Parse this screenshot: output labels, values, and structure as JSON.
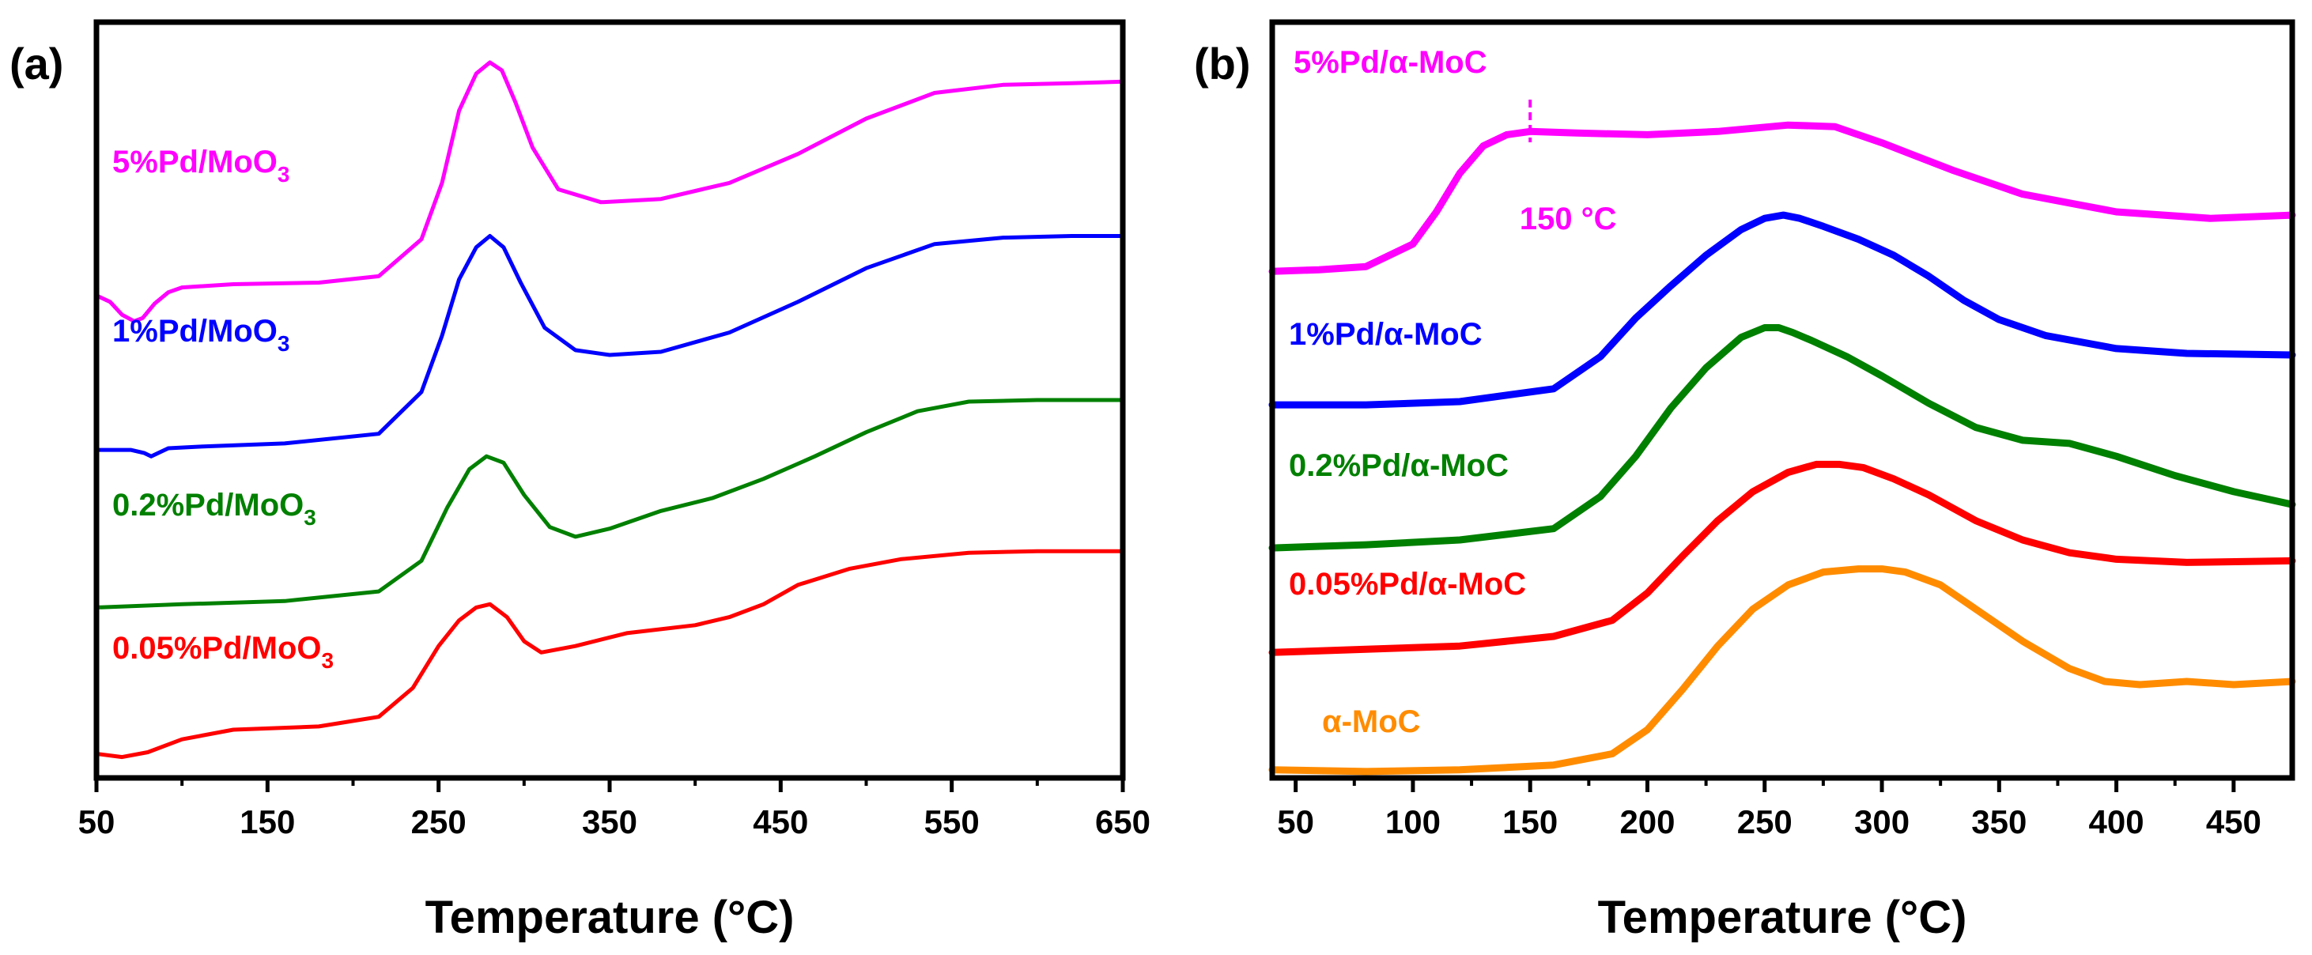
{
  "chart_data": [
    {
      "type": "line",
      "panel_label": "(a)",
      "xlabel": "Temperature (°C)",
      "ylabel": "",
      "xlim": [
        50,
        650
      ],
      "xticks": [
        50,
        150,
        250,
        350,
        450,
        550,
        650
      ],
      "ylim": [
        0,
        4.7
      ],
      "yticks_shown": false,
      "series": [
        {
          "name": "5%Pd/MoO",
          "subscript": "3",
          "color": "#ff00ff",
          "x": [
            50,
            58,
            65,
            72,
            77,
            84,
            92,
            100,
            130,
            180,
            215,
            240,
            252,
            262,
            272,
            280,
            287,
            295,
            305,
            320,
            345,
            380,
            420,
            460,
            500,
            540,
            580,
            620,
            650
          ],
          "y": [
            3.0,
            2.96,
            2.88,
            2.84,
            2.86,
            2.95,
            3.02,
            3.05,
            3.07,
            3.08,
            3.12,
            3.35,
            3.7,
            4.15,
            4.38,
            4.45,
            4.4,
            4.2,
            3.92,
            3.66,
            3.58,
            3.6,
            3.7,
            3.88,
            4.1,
            4.26,
            4.31,
            4.32,
            4.33
          ]
        },
        {
          "name": "1%Pd/MoO",
          "subscript": "3",
          "color": "#0000ff",
          "x": [
            50,
            70,
            78,
            82,
            86,
            92,
            110,
            160,
            215,
            240,
            252,
            262,
            272,
            280,
            288,
            298,
            312,
            330,
            350,
            380,
            420,
            460,
            500,
            540,
            580,
            620,
            650
          ],
          "y": [
            2.04,
            2.04,
            2.02,
            2.0,
            2.02,
            2.05,
            2.06,
            2.08,
            2.14,
            2.4,
            2.75,
            3.1,
            3.3,
            3.37,
            3.3,
            3.08,
            2.8,
            2.66,
            2.63,
            2.65,
            2.77,
            2.96,
            3.17,
            3.32,
            3.36,
            3.37,
            3.37
          ]
        },
        {
          "name": "0.2%Pd/MoO",
          "subscript": "3",
          "color": "#008000",
          "x": [
            50,
            100,
            160,
            215,
            240,
            255,
            268,
            278,
            288,
            300,
            315,
            330,
            350,
            380,
            410,
            440,
            470,
            500,
            530,
            560,
            600,
            650
          ],
          "y": [
            1.06,
            1.08,
            1.1,
            1.16,
            1.35,
            1.68,
            1.92,
            2.0,
            1.96,
            1.76,
            1.56,
            1.5,
            1.55,
            1.66,
            1.74,
            1.86,
            2.0,
            2.15,
            2.28,
            2.34,
            2.35,
            2.35
          ]
        },
        {
          "name": "0.05%Pd/MoO",
          "subscript": "3",
          "color": "#ff0000",
          "x": [
            50,
            65,
            80,
            100,
            130,
            180,
            215,
            235,
            250,
            262,
            272,
            280,
            290,
            300,
            310,
            330,
            360,
            400,
            420,
            440,
            460,
            490,
            520,
            560,
            600,
            650
          ],
          "y": [
            0.15,
            0.13,
            0.16,
            0.24,
            0.3,
            0.32,
            0.38,
            0.56,
            0.82,
            0.98,
            1.06,
            1.08,
            1.0,
            0.85,
            0.78,
            0.82,
            0.9,
            0.95,
            1.0,
            1.08,
            1.2,
            1.3,
            1.36,
            1.4,
            1.41,
            1.41
          ]
        }
      ]
    },
    {
      "type": "line",
      "panel_label": "(b)",
      "xlabel": "Temperature (°C)",
      "ylabel": "",
      "xlim": [
        40,
        475
      ],
      "xticks": [
        50,
        100,
        150,
        200,
        250,
        300,
        350,
        400,
        450
      ],
      "ylim": [
        0,
        4.7
      ],
      "yticks_shown": false,
      "annotation": {
        "text": "150 °C",
        "x": 150
      },
      "series": [
        {
          "name": "5%Pd/α-MoC",
          "color": "#ff00ff",
          "x": [
            40,
            60,
            80,
            100,
            110,
            120,
            130,
            140,
            150,
            170,
            200,
            230,
            260,
            280,
            300,
            330,
            360,
            400,
            440,
            475
          ],
          "y": [
            3.15,
            3.16,
            3.18,
            3.32,
            3.52,
            3.76,
            3.93,
            4.0,
            4.02,
            4.01,
            4.0,
            4.02,
            4.06,
            4.05,
            3.95,
            3.78,
            3.63,
            3.52,
            3.48,
            3.5
          ]
        },
        {
          "name": "1%Pd/α-MoC",
          "color": "#0000ff",
          "x": [
            40,
            80,
            120,
            160,
            180,
            195,
            210,
            225,
            240,
            250,
            258,
            265,
            275,
            290,
            305,
            320,
            335,
            350,
            370,
            400,
            430,
            475
          ],
          "y": [
            2.32,
            2.32,
            2.34,
            2.42,
            2.62,
            2.86,
            3.06,
            3.25,
            3.41,
            3.48,
            3.5,
            3.48,
            3.43,
            3.35,
            3.25,
            3.12,
            2.97,
            2.85,
            2.75,
            2.67,
            2.64,
            2.63
          ]
        },
        {
          "name": "0.2%Pd/α-MoC",
          "color": "#008000",
          "x": [
            40,
            80,
            120,
            160,
            180,
            195,
            210,
            225,
            240,
            250,
            256,
            262,
            270,
            285,
            300,
            320,
            340,
            360,
            380,
            400,
            425,
            450,
            475
          ],
          "y": [
            1.43,
            1.45,
            1.48,
            1.55,
            1.75,
            2.0,
            2.3,
            2.55,
            2.74,
            2.8,
            2.8,
            2.77,
            2.72,
            2.62,
            2.5,
            2.33,
            2.18,
            2.1,
            2.08,
            2.0,
            1.88,
            1.78,
            1.7
          ]
        },
        {
          "name": "0.05%Pd/α-MoC",
          "color": "#ff0000",
          "x": [
            40,
            80,
            120,
            160,
            185,
            200,
            215,
            230,
            245,
            260,
            272,
            282,
            292,
            305,
            320,
            340,
            360,
            380,
            400,
            430,
            475
          ],
          "y": [
            0.78,
            0.8,
            0.82,
            0.88,
            0.98,
            1.15,
            1.38,
            1.6,
            1.78,
            1.9,
            1.95,
            1.95,
            1.93,
            1.86,
            1.76,
            1.6,
            1.48,
            1.4,
            1.36,
            1.34,
            1.35
          ]
        },
        {
          "name": "α-MoC",
          "color": "#ff8c00",
          "x": [
            40,
            80,
            120,
            160,
            185,
            200,
            215,
            230,
            245,
            260,
            275,
            290,
            300,
            310,
            325,
            340,
            360,
            380,
            395,
            410,
            430,
            450,
            475
          ],
          "y": [
            0.05,
            0.04,
            0.05,
            0.08,
            0.15,
            0.3,
            0.55,
            0.82,
            1.05,
            1.2,
            1.28,
            1.3,
            1.3,
            1.28,
            1.2,
            1.05,
            0.85,
            0.68,
            0.6,
            0.58,
            0.6,
            0.58,
            0.6
          ]
        }
      ]
    }
  ]
}
